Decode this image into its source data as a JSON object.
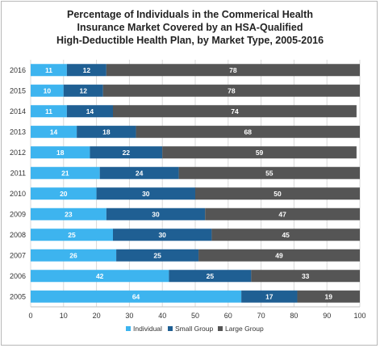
{
  "chart_data": {
    "type": "bar",
    "orientation": "horizontal",
    "stacked": true,
    "title_lines": [
      "Percentage of Individuals in the Commerical Health",
      "Insurance Market Covered by an HSA-Qualified",
      "High-Deductible Health Plan, by Market Type, 2005-2016"
    ],
    "categories": [
      "2016",
      "2015",
      "2014",
      "2013",
      "2012",
      "2011",
      "2010",
      "2009",
      "2008",
      "2007",
      "2006",
      "2005"
    ],
    "series": [
      {
        "name": "Individual",
        "color": "#3db4ef",
        "values": [
          11,
          10,
          11,
          14,
          18,
          21,
          20,
          23,
          25,
          26,
          42,
          64
        ]
      },
      {
        "name": "Small Group",
        "color": "#1f5f93",
        "values": [
          12,
          12,
          14,
          18,
          22,
          24,
          30,
          30,
          30,
          25,
          25,
          17
        ]
      },
      {
        "name": "Large Group",
        "color": "#555555",
        "values": [
          78,
          78,
          74,
          68,
          59,
          55,
          50,
          47,
          45,
          49,
          33,
          19
        ]
      }
    ],
    "xlim": [
      0,
      100
    ],
    "xticks": [
      0,
      10,
      20,
      30,
      40,
      50,
      60,
      70,
      80,
      90,
      100
    ],
    "grid": true,
    "legend_position": "bottom"
  }
}
